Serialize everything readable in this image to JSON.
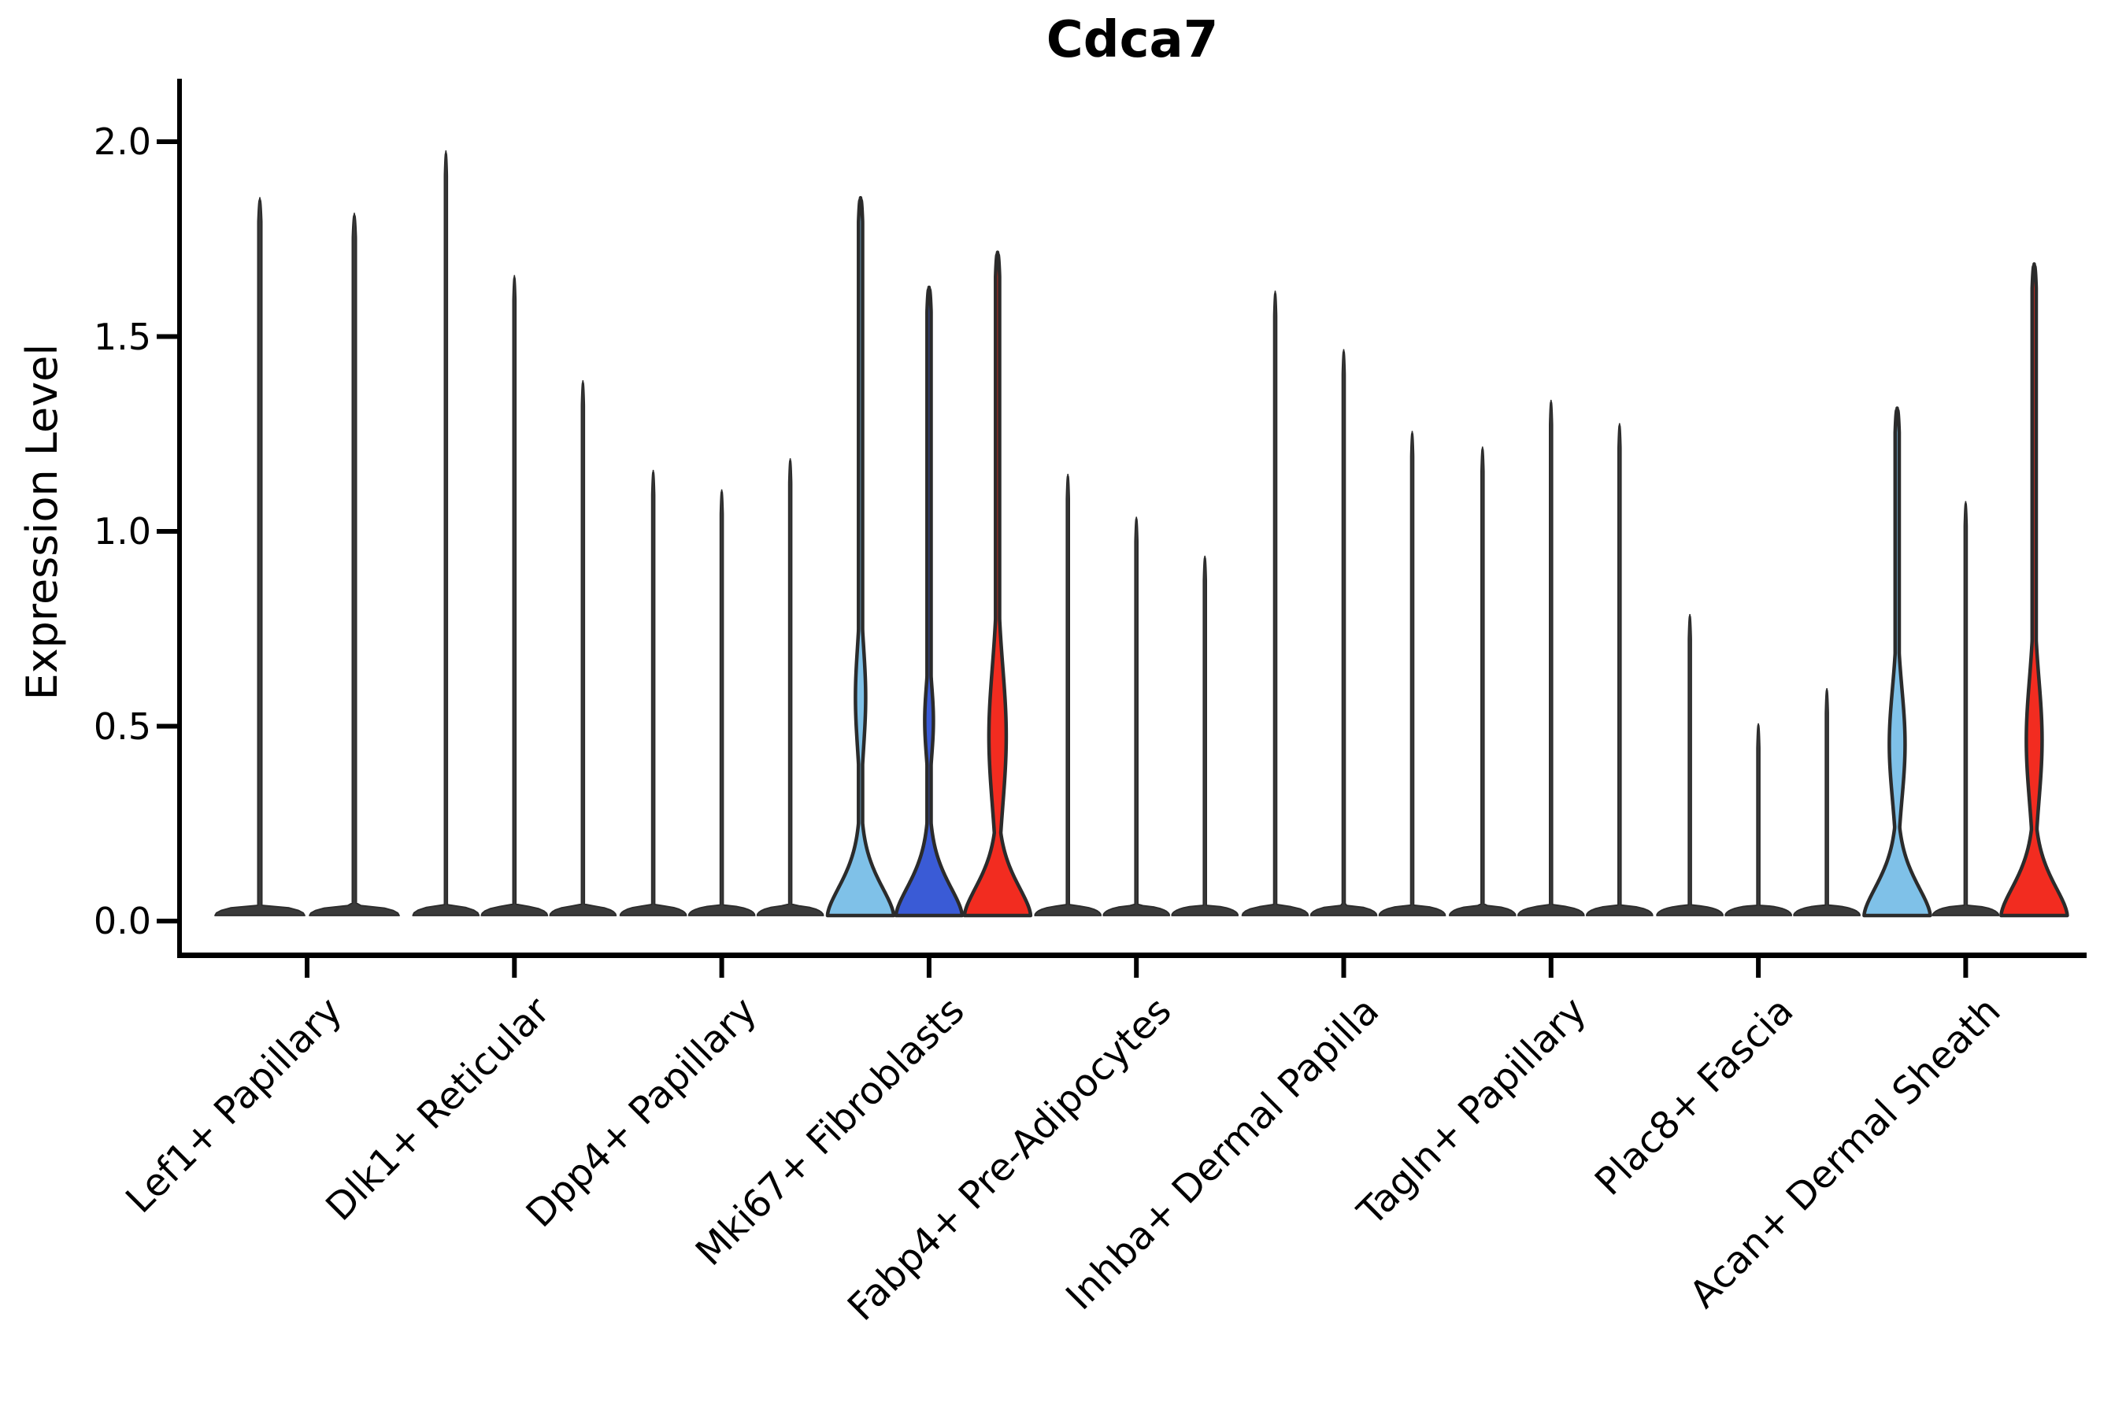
{
  "chart_data": {
    "type": "violin",
    "title": "Cdca7",
    "xlabel": "",
    "ylabel": "Expression Level",
    "ylim": [
      0.0,
      2.05
    ],
    "yticks": [
      {
        "value": 0.0,
        "label": "0.0"
      },
      {
        "value": 0.5,
        "label": "0.5"
      },
      {
        "value": 1.0,
        "label": "1.0"
      },
      {
        "value": 1.5,
        "label": "1.5"
      },
      {
        "value": 2.0,
        "label": "2.0"
      }
    ],
    "grid": false,
    "legend": "none",
    "description": "Split violin plot of Cdca7 expression level per fibroblast cluster; most violins collapse to a spike at 0 with a thin tail up to the listed maximum expression value",
    "categories": [
      "Lef1+ Papillary",
      "Dlk1+ Reticular",
      "Dpp4+ Papillary",
      "Mki67+ Fibroblasts",
      "Fabp4+ Pre-Adipocytes",
      "Inhba+ Dermal Papilla",
      "Tagln+ Papillary",
      "Plac8+ Fascia",
      "Acan+ Dermal Sheath"
    ],
    "groups": [
      {
        "category": "Lef1+ Papillary",
        "violins": [
          {
            "max": 1.84,
            "fill": "dark",
            "base": "pancake"
          },
          {
            "max": 1.8,
            "fill": "dark",
            "base": "pancake"
          }
        ]
      },
      {
        "category": "Dlk1+ Reticular",
        "violins": [
          {
            "max": 1.96,
            "fill": "dark",
            "base": "pancake"
          },
          {
            "max": 1.64,
            "fill": "dark",
            "base": "pancake"
          },
          {
            "max": 1.37,
            "fill": "dark",
            "base": "pancake"
          }
        ]
      },
      {
        "category": "Dpp4+ Papillary",
        "violins": [
          {
            "max": 1.14,
            "fill": "dark",
            "base": "pancake"
          },
          {
            "max": 1.09,
            "fill": "dark",
            "base": "pancake"
          },
          {
            "max": 1.17,
            "fill": "dark",
            "base": "pancake"
          }
        ]
      },
      {
        "category": "Mki67+ Fibroblasts",
        "violins": [
          {
            "max": 1.84,
            "fill": "skyblue",
            "base": "flare",
            "bulge": {
              "amp": 6.5,
              "center": 0.56,
              "sigma": 0.18
            }
          },
          {
            "max": 1.61,
            "fill": "blue",
            "base": "flare",
            "bulge": {
              "amp": 5.5,
              "center": 0.5,
              "sigma": 0.13
            }
          },
          {
            "max": 1.7,
            "fill": "red",
            "base": "flare",
            "bulge": {
              "amp": 11,
              "center": 0.46,
              "sigma": 0.25
            }
          }
        ]
      },
      {
        "category": "Fabp4+ Pre-Adipocytes",
        "violins": [
          {
            "max": 1.13,
            "fill": "dark",
            "base": "pancake"
          },
          {
            "max": 1.02,
            "fill": "dark",
            "base": "pancake"
          },
          {
            "max": 0.92,
            "fill": "dark",
            "base": "pancake"
          }
        ]
      },
      {
        "category": "Inhba+ Dermal Papilla",
        "violins": [
          {
            "max": 1.6,
            "fill": "dark",
            "base": "pancake"
          },
          {
            "max": 1.45,
            "fill": "dark",
            "base": "pancake"
          },
          {
            "max": 1.24,
            "fill": "dark",
            "base": "pancake"
          }
        ]
      },
      {
        "category": "Tagln+ Papillary",
        "violins": [
          {
            "max": 1.2,
            "fill": "dark",
            "base": "pancake"
          },
          {
            "max": 1.32,
            "fill": "dark",
            "base": "pancake"
          },
          {
            "max": 1.26,
            "fill": "dark",
            "base": "pancake"
          }
        ]
      },
      {
        "category": "Plac8+ Fascia",
        "violins": [
          {
            "max": 0.77,
            "fill": "dark",
            "base": "pancake"
          },
          {
            "max": 0.49,
            "fill": "dark",
            "base": "pancake"
          },
          {
            "max": 0.58,
            "fill": "dark",
            "base": "pancake"
          }
        ]
      },
      {
        "category": "Acan+ Dermal Sheath",
        "violins": [
          {
            "max": 1.3,
            "fill": "skyblue",
            "base": "flare",
            "bulge": {
              "amp": 10,
              "center": 0.44,
              "sigma": 0.2
            }
          },
          {
            "max": 1.06,
            "fill": "dark",
            "base": "pancake"
          },
          {
            "max": 1.67,
            "fill": "red",
            "base": "flare",
            "bulge": {
              "amp": 10,
              "center": 0.45,
              "sigma": 0.22
            }
          }
        ]
      }
    ],
    "colors": {
      "skyblue": "#7FC1E8",
      "blue": "#3A5BD6",
      "red": "#F22C20",
      "dark": "#3A3A3A",
      "outline": "#2B2B2B",
      "axis": "#000000"
    }
  }
}
